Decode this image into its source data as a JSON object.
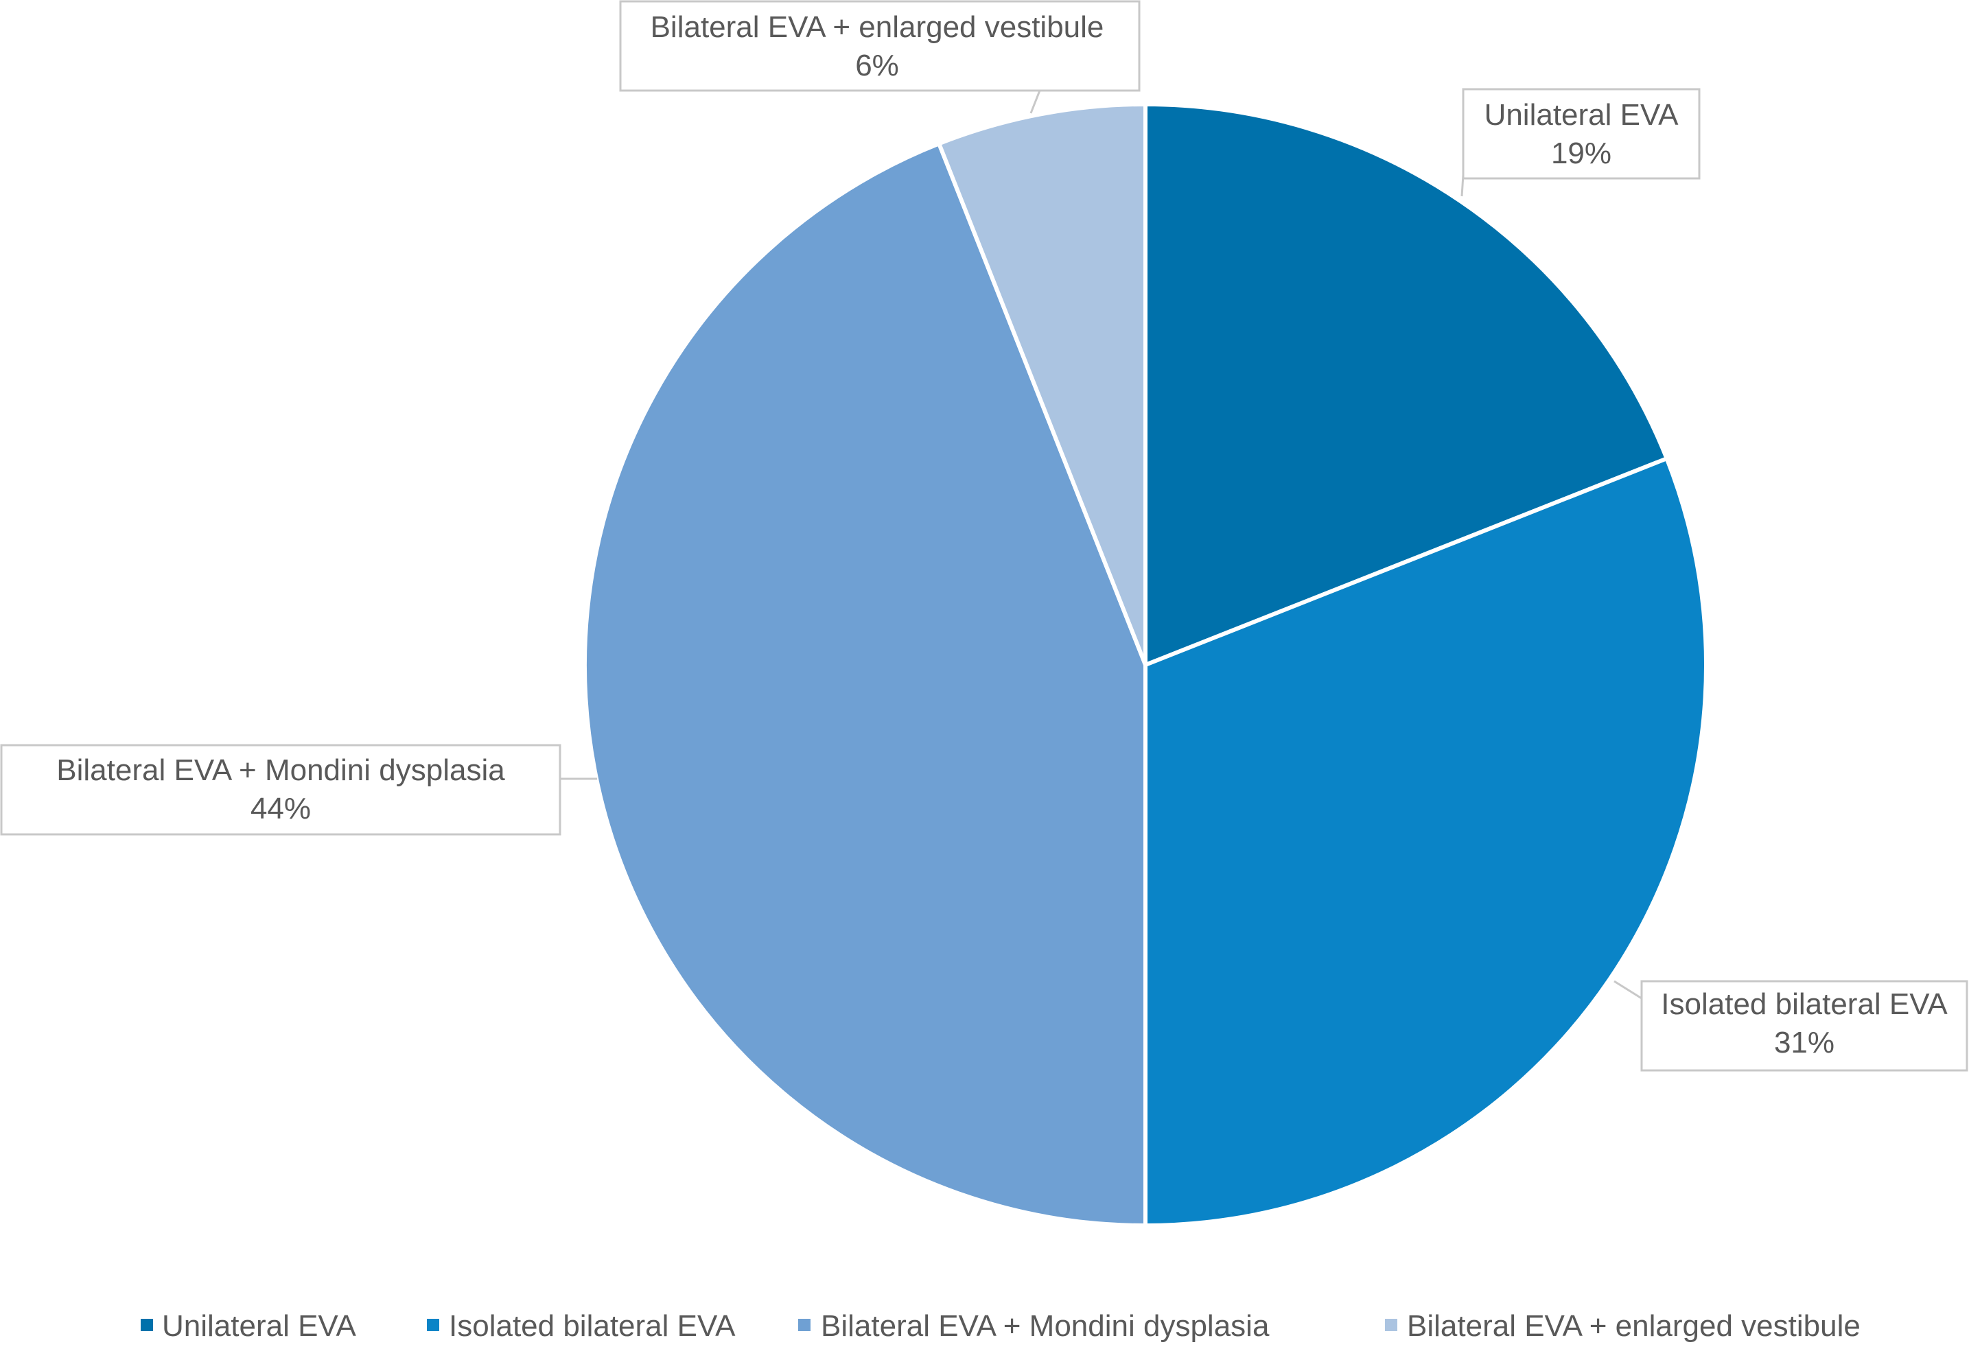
{
  "chart_data": {
    "type": "pie",
    "title": "",
    "slices": [
      {
        "label": "Unilateral EVA",
        "value": 19,
        "value_label": "19%",
        "color": "#0071AB"
      },
      {
        "label": "Isolated bilateral EVA",
        "value": 31,
        "value_label": "31%",
        "color": "#0A84C7"
      },
      {
        "label": "Bilateral EVA + Mondini dysplasia",
        "value": 44,
        "value_label": "44%",
        "color": "#6FA0D3"
      },
      {
        "label": "Bilateral EVA + enlarged vestibule",
        "value": 6,
        "value_label": "6%",
        "color": "#ABC4E1"
      }
    ],
    "start_angle": "12 o'clock",
    "direction": "clockwise",
    "legend_position": "bottom"
  }
}
